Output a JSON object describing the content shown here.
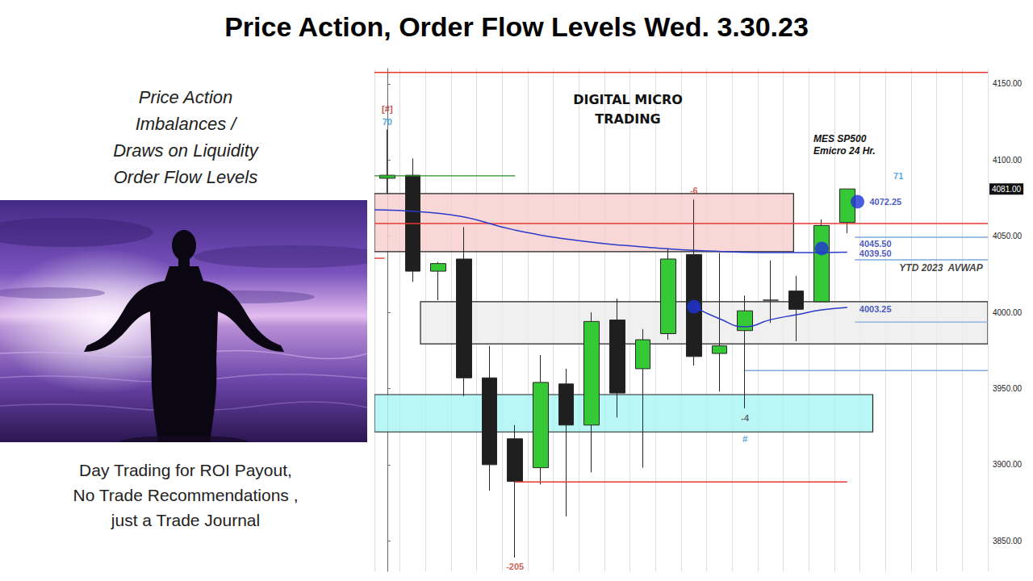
{
  "title": "Price Action, Order Flow Levels Wed. 3.30.23",
  "left_panel": {
    "lines": [
      "Price Action",
      "Imbalances /",
      "Draws on Liquidity",
      "Order Flow Levels"
    ],
    "footer": [
      "Day Trading for ROI Payout,",
      "No Trade Recommendations ,",
      "just a Trade Journal"
    ]
  },
  "chart_data": {
    "type": "candlestick",
    "categories": [
      null,
      null,
      null,
      null,
      null,
      null,
      null,
      null,
      null,
      null,
      null,
      null,
      null,
      null,
      null,
      null,
      null,
      null,
      null,
      null,
      null,
      null,
      null,
      null
    ],
    "open": [
      4088,
      4090,
      4027,
      4035,
      3957,
      3917,
      3898,
      3953,
      3926,
      3995,
      3963,
      3986,
      4038,
      3973,
      3988,
      4008,
      4014,
      4007,
      4059,
      null,
      null,
      null,
      null,
      null
    ],
    "close": [
      4090,
      4027,
      4032,
      3957,
      3900,
      3889,
      3954,
      3926,
      3994,
      3947,
      3982,
      4035,
      3971,
      3978,
      4001,
      4008,
      4002,
      4057,
      4081,
      null,
      null,
      null,
      null,
      null
    ],
    "low": [
      4078,
      4020,
      4008,
      3945,
      3883,
      3839,
      3887,
      3866,
      3895,
      3931,
      3898,
      3982,
      3965,
      3948,
      3937,
      3993,
      3981,
      4007,
      4052,
      null,
      null,
      null,
      null,
      null
    ],
    "high": [
      4120,
      4101,
      4033,
      4056,
      3978,
      3926,
      3972,
      3963,
      4000,
      4009,
      3989,
      4042,
      4074,
      4039,
      4011,
      4034,
      4024,
      4061,
      4081,
      null,
      null,
      null,
      null,
      null
    ],
    "colors": [
      "#36c936",
      "#1f1f1f",
      "#36c936",
      "#1f1f1f",
      "#1f1f1f",
      "#1f1f1f",
      "#36c936",
      "#1f1f1f",
      "#36c936",
      "#1f1f1f",
      "#36c936",
      "#36c936",
      "#1f1f1f",
      "#36c936",
      "#36c936",
      "#1f1f1f",
      "#1f1f1f",
      "#36c936",
      "#36c936",
      null,
      null,
      null,
      null,
      null
    ],
    "ylim": [
      3830,
      4160
    ],
    "yticks": [
      {
        "value": 3850,
        "label": "3850.00"
      },
      {
        "value": 3900,
        "label": "3900.00"
      },
      {
        "value": 3950,
        "label": "3950.00"
      },
      {
        "value": 4000,
        "label": "4000.00"
      },
      {
        "value": 4050,
        "label": "4050.00"
      },
      {
        "value": 4100,
        "label": "4100.00"
      },
      {
        "value": 4150,
        "label": "4150.00"
      }
    ],
    "grid": true,
    "tick_labels": "y",
    "last_price": {
      "value": 4081,
      "label": "4081.00"
    },
    "zones": [
      {
        "x": [
          -0.5,
          15.9
        ],
        "y": [
          4039.8,
          4078
        ],
        "color": "#f9d0d0"
      },
      {
        "x": [
          1.3,
          23.5
        ],
        "y": [
          3979.3,
          4007
        ],
        "color": "#ededed"
      },
      {
        "x": [
          -0.5,
          19
        ],
        "y": [
          3921.5,
          3946
        ],
        "color": "#adf6f6"
      }
    ],
    "levels": [
      {
        "y": 4157.5,
        "x": [
          -0.5,
          23.5
        ],
        "color": "#e53935"
      },
      {
        "y": 4058.3,
        "x": [
          -0.5,
          23.5
        ],
        "color": "#e53935"
      },
      {
        "y": 4035.5,
        "x": [
          -0.5,
          -0.1
        ],
        "color": "#e53935"
      },
      {
        "y": 4089.6,
        "x": [
          -0.5,
          5
        ],
        "color": "#2e8b2e"
      },
      {
        "y": 3888.7,
        "x": [
          5,
          18
        ],
        "color": "#e53935"
      },
      {
        "y": 4049.3,
        "x": [
          18.3,
          23.5
        ],
        "color": "#7fa9db"
      },
      {
        "y": 4034.5,
        "x": [
          18.3,
          23.5
        ],
        "color": "#7fa9db"
      },
      {
        "y": 3993.6,
        "x": [
          18.3,
          23.5
        ],
        "color": "#7fa9db"
      },
      {
        "y": 3961.8,
        "x": [
          14,
          23.5
        ],
        "color": "#7fa9db"
      }
    ],
    "lines": [
      {
        "x": [
          -0.5,
          2.5,
          5,
          7.5,
          10,
          12.5,
          15.9,
          18
        ],
        "y": [
          4067.3,
          4064,
          4054,
          4047,
          4043,
          4040.3,
          4039.2,
          4039.5
        ],
        "color": "#2b3bc9"
      },
      {
        "x": [
          12,
          13,
          14,
          15,
          16,
          17,
          18
        ],
        "y": [
          4003.7,
          3995.8,
          3990.5,
          3995.2,
          3998.4,
          4001.6,
          4003.25
        ],
        "color": "#2b3bc9"
      }
    ],
    "dots": {
      "x": [
        12,
        17,
        18.4
      ],
      "y": [
        4003.7,
        4041.9,
        4072.6
      ],
      "color": "#1f33d6"
    },
    "annotations": [
      {
        "text": "[#]",
        "x": 0,
        "y": 4133.6,
        "color": "#b22222"
      },
      {
        "text": "70",
        "x": 0,
        "y": 4125,
        "color": "#2a8fd6"
      },
      {
        "text": "-6",
        "x": 12,
        "y": 4080,
        "color": "#c0392b"
      },
      {
        "text": "-205",
        "x": 5,
        "y": 3833,
        "color": "#c0392b"
      },
      {
        "text": "-4",
        "x": 14,
        "y": 3930.5,
        "color": "#444444"
      },
      {
        "text": "#",
        "x": 14,
        "y": 3917,
        "color": "#2a8fd6"
      },
      {
        "text": "71",
        "x": 20,
        "y": 4089.6,
        "color": "#2a8fd6"
      },
      {
        "text": "4072.25",
        "x": 19.5,
        "y": 4072.6,
        "color": "#1a2fb0"
      },
      {
        "text": "4045.50",
        "x": 19.1,
        "y": 4044.8,
        "color": "#1a2fb0"
      },
      {
        "text": "4039.50",
        "x": 19.1,
        "y": 4038.5,
        "color": "#1a2fb0"
      },
      {
        "text": "4003.25",
        "x": 19.1,
        "y": 4002,
        "color": "#1a2fb0"
      }
    ],
    "avwap_label": {
      "text": "YTD 2023  AVWAP",
      "x": 21.67,
      "y": 4029
    },
    "watermark": [
      "DIGITAL MICRO",
      "TRADING"
    ],
    "instrument": [
      "MES SP500",
      "Emicro 24 Hr."
    ]
  }
}
